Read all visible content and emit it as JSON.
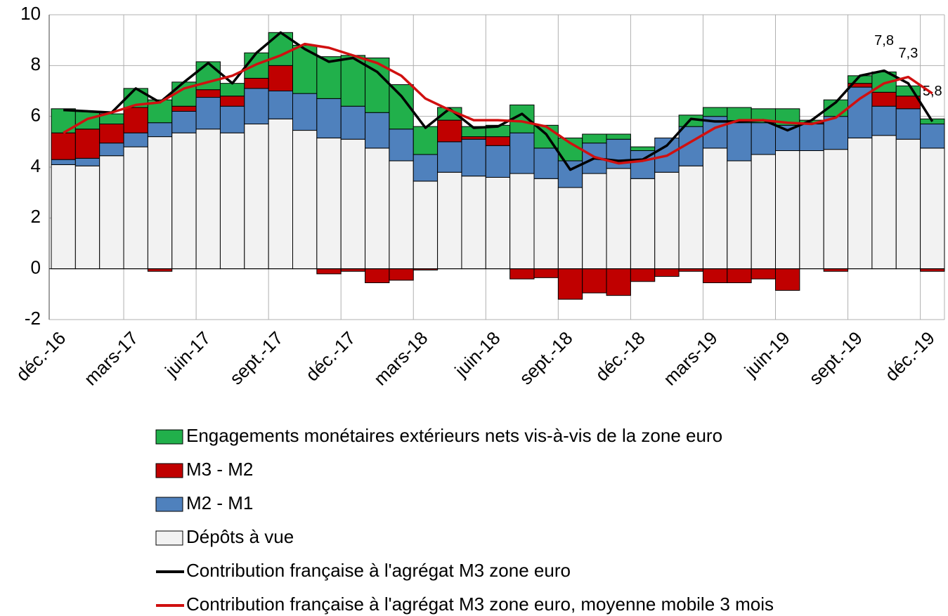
{
  "chart_data": {
    "type": "stacked-bar-line",
    "categories": [
      "déc.-16",
      null,
      null,
      "mars-17",
      null,
      null,
      "juin-17",
      null,
      null,
      "sept.-17",
      null,
      null,
      "déc.-17",
      null,
      null,
      "mars-18",
      null,
      null,
      "juin-18",
      null,
      null,
      "sept.-18",
      null,
      null,
      "déc.-18",
      null,
      null,
      "mars-19",
      null,
      null,
      "juin-19",
      null,
      null,
      "sept.-19",
      null,
      null,
      "déc.-19"
    ],
    "ylim": [
      -2,
      10
    ],
    "yticks": [
      -2,
      0,
      2,
      4,
      6,
      8,
      10
    ],
    "grid": true,
    "series": [
      {
        "name": "Dépôts à vue",
        "kind": "bar",
        "color": "#f2f2f2",
        "values": [
          4.1,
          4.05,
          4.45,
          4.8,
          5.2,
          5.35,
          5.5,
          5.35,
          5.7,
          5.9,
          5.45,
          5.15,
          5.1,
          4.75,
          4.25,
          3.45,
          3.8,
          3.65,
          3.6,
          3.75,
          3.55,
          3.2,
          3.75,
          3.95,
          3.55,
          3.8,
          4.05,
          4.75,
          4.25,
          4.5,
          4.65,
          4.65,
          4.7,
          5.15,
          5.25,
          5.1,
          4.75
        ]
      },
      {
        "name": "M2 - M1",
        "kind": "bar",
        "color": "#4f81bd",
        "values": [
          0.2,
          0.3,
          0.5,
          0.55,
          0.55,
          0.85,
          1.25,
          1.05,
          1.4,
          1.1,
          1.45,
          1.55,
          1.3,
          1.4,
          1.25,
          1.05,
          1.2,
          1.45,
          1.25,
          1.6,
          1.2,
          1.05,
          1.2,
          1.15,
          1.1,
          1.35,
          1.55,
          1.25,
          1.5,
          1.25,
          1.0,
          1.05,
          1.3,
          2.0,
          1.15,
          1.2,
          0.95
        ]
      },
      {
        "name": "M3 - M2",
        "kind": "bar",
        "color": "#c00000",
        "values": [
          1.05,
          1.15,
          0.75,
          1.0,
          -0.1,
          0.2,
          0.3,
          0.4,
          0.4,
          1.0,
          0,
          -0.2,
          -0.1,
          -0.55,
          -0.45,
          -0.05,
          0.85,
          0.1,
          0.35,
          -0.4,
          -0.35,
          -1.2,
          -0.95,
          -1.05,
          -0.5,
          -0.3,
          -0.1,
          -0.55,
          -0.55,
          -0.4,
          -0.85,
          0.05,
          -0.1,
          0.15,
          0.55,
          0.5,
          -0.1
        ]
      },
      {
        "name": "Engagements monétaires extérieurs nets vis-à-vis de la zone euro",
        "kind": "bar",
        "color": "#21b04b",
        "values": [
          0.95,
          0.7,
          0.4,
          0.75,
          0.9,
          0.95,
          1.1,
          0.5,
          1.0,
          1.3,
          1.9,
          1.65,
          2.0,
          2.15,
          1.75,
          1.1,
          0.5,
          0.4,
          0.45,
          1.1,
          0.9,
          0.9,
          0.35,
          0.2,
          0.15,
          0,
          0.45,
          0.35,
          0.6,
          0.55,
          0.65,
          0.1,
          0.65,
          0.3,
          0.8,
          0.4,
          0.2
        ]
      },
      {
        "name": "Contribution française à l'agrégat M3 zone euro",
        "kind": "line",
        "color": "#000000",
        "values": [
          6.25,
          6.2,
          6.15,
          7.1,
          6.55,
          7.35,
          8.1,
          7.3,
          8.5,
          9.3,
          8.65,
          8.15,
          8.3,
          7.75,
          6.8,
          5.55,
          6.3,
          5.55,
          5.6,
          6.1,
          5.3,
          3.9,
          4.35,
          4.25,
          4.3,
          4.85,
          5.9,
          5.8,
          5.8,
          5.85,
          5.45,
          5.85,
          6.55,
          7.6,
          7.8,
          7.3,
          5.8
        ],
        "value_labels": [
          null,
          null,
          null,
          null,
          null,
          null,
          null,
          null,
          null,
          null,
          null,
          null,
          null,
          null,
          null,
          null,
          null,
          null,
          null,
          null,
          null,
          null,
          null,
          null,
          null,
          null,
          null,
          null,
          null,
          null,
          null,
          null,
          null,
          null,
          "7,8",
          "7,3",
          "5,8"
        ]
      },
      {
        "name": "Contribution française à l'agrégat M3 zone euro, moyenne mobile 3 mois",
        "kind": "line",
        "color": "#d01010",
        "values": [
          5.35,
          5.9,
          6.15,
          6.45,
          6.55,
          7.1,
          7.35,
          7.6,
          8.05,
          8.4,
          8.85,
          8.7,
          8.4,
          8.1,
          7.6,
          6.7,
          6.25,
          5.85,
          5.85,
          5.8,
          5.6,
          4.95,
          4.4,
          4.15,
          4.25,
          4.45,
          5.0,
          5.55,
          5.85,
          5.85,
          5.75,
          5.7,
          5.95,
          6.7,
          7.3,
          7.55,
          6.9
        ]
      }
    ],
    "legend_order": [
      3,
      2,
      1,
      0,
      4,
      5
    ]
  }
}
